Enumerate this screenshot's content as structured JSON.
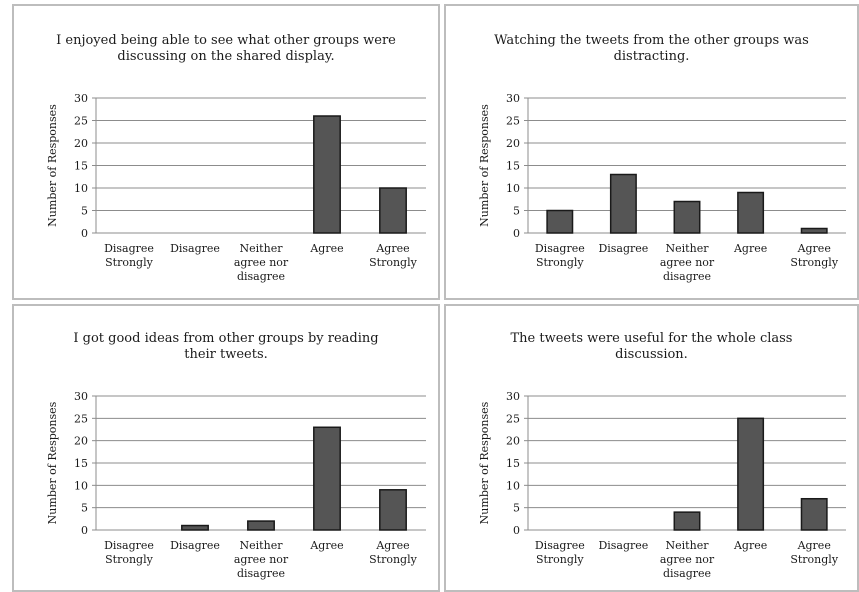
{
  "categories": [
    [
      "Disagree",
      "Strongly"
    ],
    [
      "Disagree"
    ],
    [
      "Neither",
      "agree nor",
      "disagree"
    ],
    [
      "Agree"
    ],
    [
      "Agree",
      "Strongly"
    ]
  ],
  "chart_data": [
    {
      "type": "bar",
      "title": [
        "I enjoyed being able to see what other groups were",
        "discussing on the shared display."
      ],
      "categories": [
        "Disagree Strongly",
        "Disagree",
        "Neither agree nor disagree",
        "Agree",
        "Agree Strongly"
      ],
      "values": [
        0,
        0,
        0,
        26,
        10
      ],
      "ylabel": "Number of Responses",
      "ylim": [
        0,
        30
      ],
      "yticks": [
        0,
        5,
        10,
        15,
        20,
        25,
        30
      ],
      "grid": true,
      "bar_color": "#555555"
    },
    {
      "type": "bar",
      "title": [
        "Watching the tweets from the other groups was",
        "distracting."
      ],
      "categories": [
        "Disagree Strongly",
        "Disagree",
        "Neither agree nor disagree",
        "Agree",
        "Agree Strongly"
      ],
      "values": [
        5,
        13,
        7,
        9,
        1
      ],
      "ylabel": "Number of Responses",
      "ylim": [
        0,
        30
      ],
      "yticks": [
        0,
        5,
        10,
        15,
        20,
        25,
        30
      ],
      "grid": true,
      "bar_color": "#555555"
    },
    {
      "type": "bar",
      "title": [
        "I got good ideas from other groups by reading",
        "their tweets."
      ],
      "categories": [
        "Disagree Strongly",
        "Disagree",
        "Neither agree nor disagree",
        "Agree",
        "Agree Strongly"
      ],
      "values": [
        0,
        1,
        2,
        23,
        9
      ],
      "ylabel": "Number of Responses",
      "ylim": [
        0,
        30
      ],
      "yticks": [
        0,
        5,
        10,
        15,
        20,
        25,
        30
      ],
      "grid": true,
      "bar_color": "#555555"
    },
    {
      "type": "bar",
      "title": [
        "The tweets were useful for the whole class",
        "discussion."
      ],
      "categories": [
        "Disagree Strongly",
        "Disagree",
        "Neither agree nor disagree",
        "Agree",
        "Agree Strongly"
      ],
      "values": [
        0,
        0,
        4,
        25,
        7
      ],
      "ylabel": "Number of Responses",
      "ylim": [
        0,
        30
      ],
      "yticks": [
        0,
        5,
        10,
        15,
        20,
        25,
        30
      ],
      "grid": true,
      "bar_color": "#555555"
    }
  ]
}
